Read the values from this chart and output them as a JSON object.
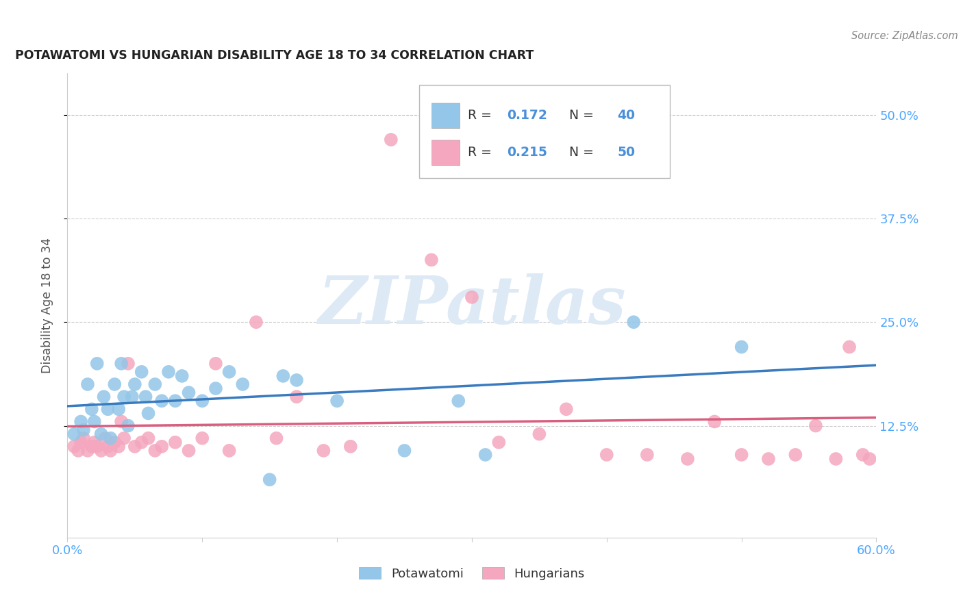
{
  "title": "POTAWATOMI VS HUNGARIAN DISABILITY AGE 18 TO 34 CORRELATION CHART",
  "source": "Source: ZipAtlas.com",
  "ylabel": "Disability Age 18 to 34",
  "xlim": [
    0.0,
    0.6
  ],
  "ylim": [
    -0.01,
    0.55
  ],
  "xticks": [
    0.0,
    0.1,
    0.2,
    0.3,
    0.4,
    0.5,
    0.6
  ],
  "xticklabels": [
    "0.0%",
    "",
    "",
    "",
    "",
    "",
    "60.0%"
  ],
  "ytick_positions": [
    0.125,
    0.25,
    0.375,
    0.5
  ],
  "ytick_labels": [
    "12.5%",
    "25.0%",
    "37.5%",
    "50.0%"
  ],
  "grid_color": "#cccccc",
  "background_color": "#ffffff",
  "potawatomi_color": "#93c6e8",
  "hungarian_color": "#f4a7be",
  "potawatomi_line_color": "#3a7bbf",
  "hungarian_line_color": "#d95f7f",
  "R_potawatomi": 0.172,
  "N_potawatomi": 40,
  "R_hungarian": 0.215,
  "N_hungarian": 50,
  "potawatomi_x": [
    0.005,
    0.01,
    0.012,
    0.015,
    0.018,
    0.02,
    0.022,
    0.025,
    0.027,
    0.03,
    0.032,
    0.035,
    0.038,
    0.04,
    0.042,
    0.045,
    0.048,
    0.05,
    0.055,
    0.058,
    0.06,
    0.065,
    0.07,
    0.075,
    0.08,
    0.085,
    0.09,
    0.1,
    0.11,
    0.12,
    0.13,
    0.15,
    0.16,
    0.17,
    0.2,
    0.25,
    0.29,
    0.31,
    0.42,
    0.5
  ],
  "potawatomi_y": [
    0.115,
    0.13,
    0.12,
    0.175,
    0.145,
    0.13,
    0.2,
    0.115,
    0.16,
    0.145,
    0.11,
    0.175,
    0.145,
    0.2,
    0.16,
    0.125,
    0.16,
    0.175,
    0.19,
    0.16,
    0.14,
    0.175,
    0.155,
    0.19,
    0.155,
    0.185,
    0.165,
    0.155,
    0.17,
    0.19,
    0.175,
    0.06,
    0.185,
    0.18,
    0.155,
    0.095,
    0.155,
    0.09,
    0.25,
    0.22
  ],
  "hungarian_x": [
    0.005,
    0.008,
    0.01,
    0.012,
    0.015,
    0.018,
    0.02,
    0.022,
    0.025,
    0.028,
    0.03,
    0.032,
    0.035,
    0.038,
    0.04,
    0.042,
    0.045,
    0.05,
    0.055,
    0.06,
    0.065,
    0.07,
    0.08,
    0.09,
    0.1,
    0.11,
    0.12,
    0.14,
    0.155,
    0.17,
    0.19,
    0.21,
    0.24,
    0.27,
    0.3,
    0.32,
    0.35,
    0.37,
    0.4,
    0.43,
    0.46,
    0.48,
    0.5,
    0.52,
    0.54,
    0.555,
    0.57,
    0.58,
    0.59,
    0.595
  ],
  "hungarian_y": [
    0.1,
    0.095,
    0.105,
    0.11,
    0.095,
    0.1,
    0.105,
    0.1,
    0.095,
    0.11,
    0.1,
    0.095,
    0.105,
    0.1,
    0.13,
    0.11,
    0.2,
    0.1,
    0.105,
    0.11,
    0.095,
    0.1,
    0.105,
    0.095,
    0.11,
    0.2,
    0.095,
    0.25,
    0.11,
    0.16,
    0.095,
    0.1,
    0.47,
    0.325,
    0.28,
    0.105,
    0.115,
    0.145,
    0.09,
    0.09,
    0.085,
    0.13,
    0.09,
    0.085,
    0.09,
    0.125,
    0.085,
    0.22,
    0.09,
    0.085
  ],
  "watermark_text": "ZIPatlas",
  "watermark_color": "#ddeaf5",
  "legend_label_potawatomi": "Potawatomi",
  "legend_label_hungarian": "Hungarians",
  "tick_color": "#4da6ff",
  "label_color": "#555555"
}
